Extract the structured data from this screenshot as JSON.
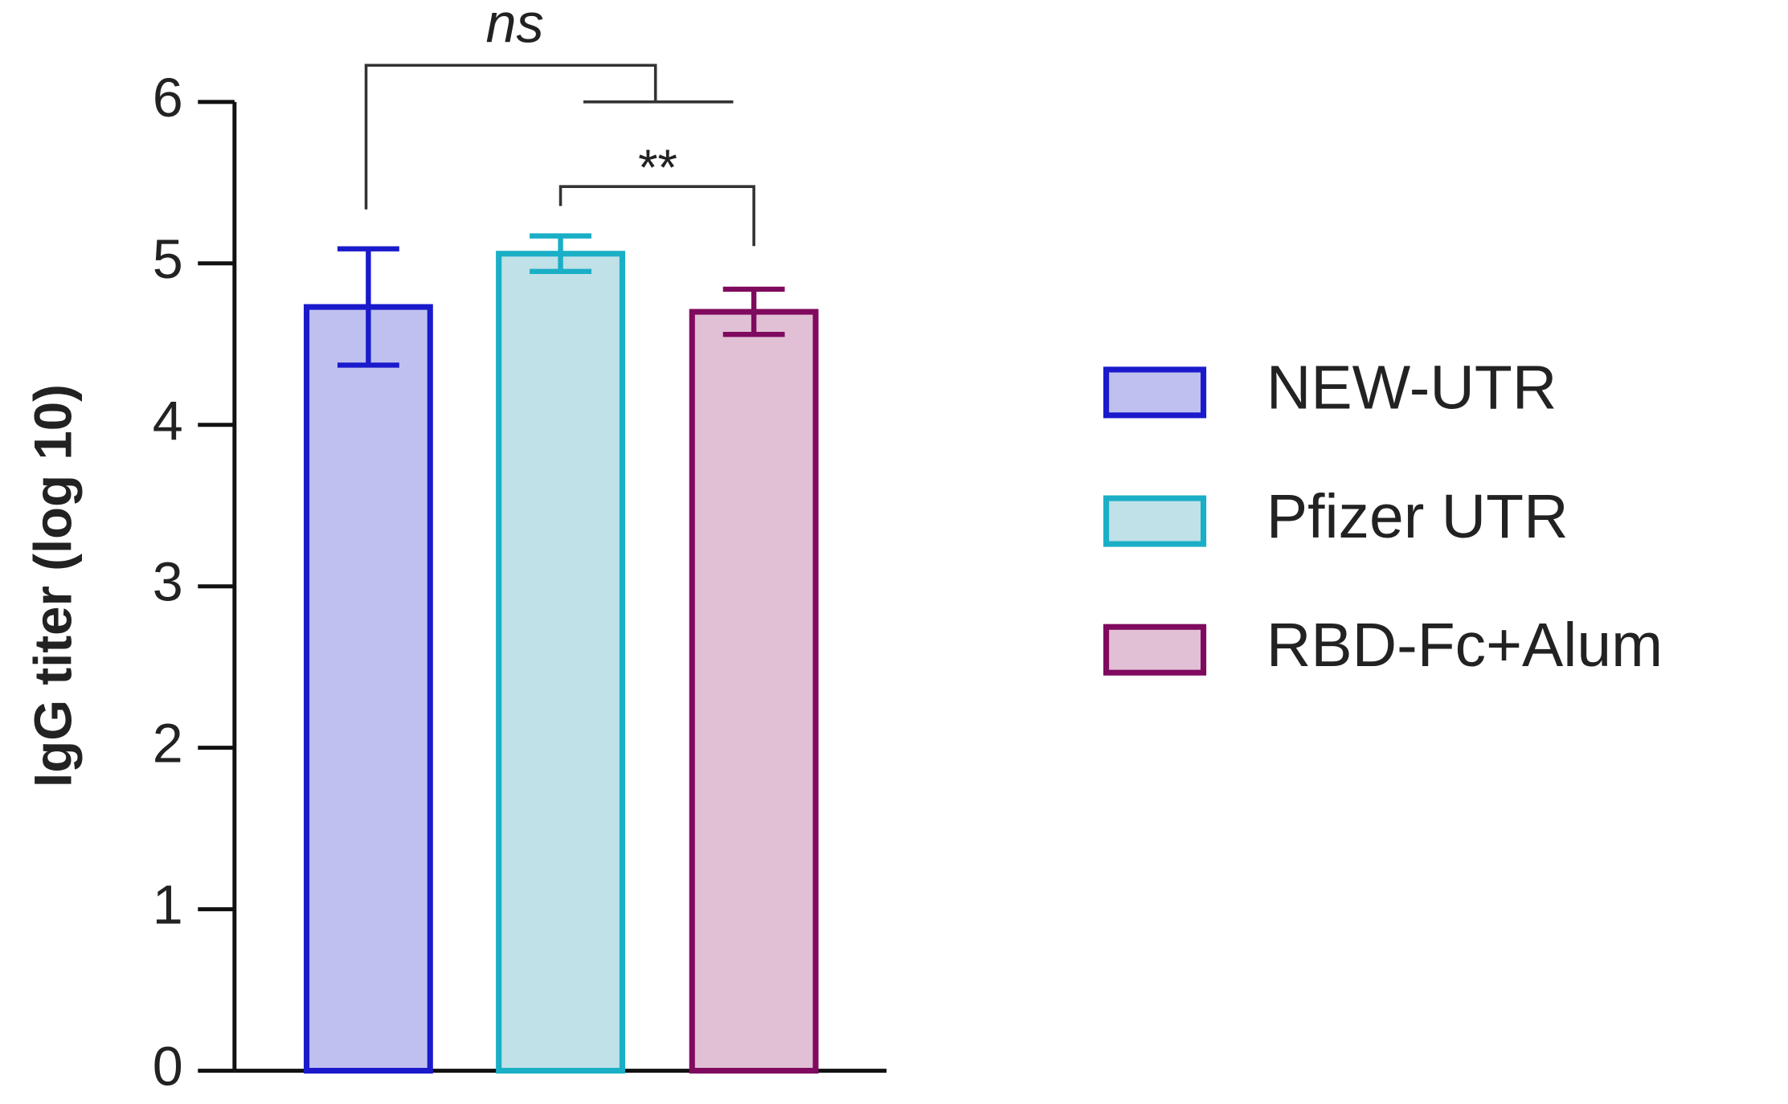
{
  "chart_data": {
    "type": "bar",
    "y_label": "IgG titer (log 10)",
    "series": [
      {
        "name": "NEW-UTR",
        "color": "#1a1acc",
        "fill": "#c0c0f0",
        "values": [
          4.73
        ],
        "errors": [
          0.36
        ]
      },
      {
        "name": "Pfizer UTR",
        "color": "#1aafc6",
        "fill": "#bfe1e7",
        "values": [
          5.06
        ],
        "errors": [
          0.11
        ]
      },
      {
        "name": "RBD-Fc+Alum",
        "color": "#7f0a5e",
        "fill": "#e1c0d6",
        "values": [
          4.7
        ],
        "errors": [
          0.14
        ]
      }
    ],
    "annotations": [
      "ns",
      "**"
    ],
    "ylim": [
      0,
      6
    ],
    "yticks": [
      0,
      1,
      2,
      3,
      4,
      5,
      6
    ]
  }
}
